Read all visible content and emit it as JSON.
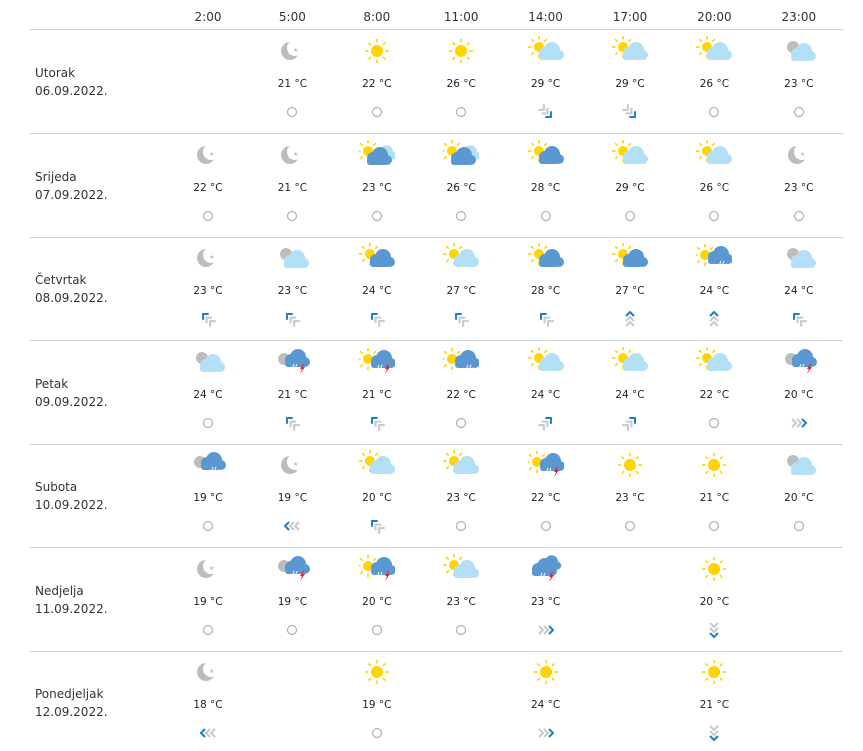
{
  "hours": [
    "2:00",
    "5:00",
    "8:00",
    "11:00",
    "14:00",
    "17:00",
    "20:00",
    "23:00"
  ],
  "colors": {
    "sun": "#ffd400",
    "cloud_light": "#b3e0f7",
    "cloud_dark": "#5b97d1",
    "moon": "#bdbdbd",
    "wind": "#1b7fc0",
    "wind_trail": "#c8c8c8",
    "bolt": "#e5262d"
  },
  "wind_legend": "calm = circle; arrows show direction (N, NE, E, SE, S, W, NW)",
  "days": [
    {
      "name": "Utorak",
      "date": "06.09.2022.",
      "cells": [
        null,
        {
          "icon": "moon",
          "temp": "21 °C",
          "wind": "calm"
        },
        {
          "icon": "sun",
          "temp": "22 °C",
          "wind": "calm"
        },
        {
          "icon": "sun",
          "temp": "26 °C",
          "wind": "calm"
        },
        {
          "icon": "sun-cloud-light",
          "temp": "29 °C",
          "wind": "SE"
        },
        {
          "icon": "sun-cloud-light",
          "temp": "29 °C",
          "wind": "SE"
        },
        {
          "icon": "sun-cloud-light",
          "temp": "26 °C",
          "wind": "calm"
        },
        {
          "icon": "moon-cloud",
          "temp": "23 °C",
          "wind": "calm"
        }
      ]
    },
    {
      "name": "Srijeda",
      "date": "07.09.2022.",
      "cells": [
        {
          "icon": "moon",
          "temp": "22 °C",
          "wind": "calm"
        },
        {
          "icon": "moon",
          "temp": "21 °C",
          "wind": "calm"
        },
        {
          "icon": "sun-clouds-mixed",
          "temp": "23 °C",
          "wind": "calm"
        },
        {
          "icon": "sun-clouds-mixed",
          "temp": "26 °C",
          "wind": "calm"
        },
        {
          "icon": "sun-cloud-dark",
          "temp": "28 °C",
          "wind": "calm"
        },
        {
          "icon": "sun-cloud-light",
          "temp": "29 °C",
          "wind": "calm"
        },
        {
          "icon": "sun-cloud-light",
          "temp": "26 °C",
          "wind": "calm"
        },
        {
          "icon": "moon",
          "temp": "23 °C",
          "wind": "calm"
        }
      ]
    },
    {
      "name": "Četvrtak",
      "date": "08.09.2022.",
      "cells": [
        {
          "icon": "moon",
          "temp": "23 °C",
          "wind": "NW"
        },
        {
          "icon": "moon-cloud",
          "temp": "23 °C",
          "wind": "NW"
        },
        {
          "icon": "sun-cloud-dark",
          "temp": "24 °C",
          "wind": "NW"
        },
        {
          "icon": "sun-cloud-light",
          "temp": "27 °C",
          "wind": "NW"
        },
        {
          "icon": "sun-cloud-dark",
          "temp": "28 °C",
          "wind": "NW"
        },
        {
          "icon": "sun-cloud-dark",
          "temp": "27 °C",
          "wind": "N"
        },
        {
          "icon": "sun-rain",
          "temp": "24 °C",
          "wind": "N"
        },
        {
          "icon": "moon-cloud",
          "temp": "24 °C",
          "wind": "NW"
        }
      ]
    },
    {
      "name": "Petak",
      "date": "09.09.2022.",
      "cells": [
        {
          "icon": "moon-cloud",
          "temp": "24 °C",
          "wind": "calm"
        },
        {
          "icon": "moon-storm",
          "temp": "21 °C",
          "wind": "NW"
        },
        {
          "icon": "sun-storm",
          "temp": "21 °C",
          "wind": "NW"
        },
        {
          "icon": "sun-rain",
          "temp": "22 °C",
          "wind": "calm"
        },
        {
          "icon": "sun-cloud-light",
          "temp": "24 °C",
          "wind": "NE"
        },
        {
          "icon": "sun-cloud-light",
          "temp": "24 °C",
          "wind": "NE"
        },
        {
          "icon": "sun-cloud-light",
          "temp": "22 °C",
          "wind": "calm"
        },
        {
          "icon": "moon-storm",
          "temp": "20 °C",
          "wind": "E"
        }
      ]
    },
    {
      "name": "Subota",
      "date": "10.09.2022.",
      "cells": [
        {
          "icon": "moon-rain",
          "temp": "19 °C",
          "wind": "calm"
        },
        {
          "icon": "moon",
          "temp": "19 °C",
          "wind": "W"
        },
        {
          "icon": "sun-cloud-light",
          "temp": "20 °C",
          "wind": "NW"
        },
        {
          "icon": "sun-cloud-light",
          "temp": "23 °C",
          "wind": "calm"
        },
        {
          "icon": "sun-storm",
          "temp": "22 °C",
          "wind": "calm"
        },
        {
          "icon": "sun",
          "temp": "23 °C",
          "wind": "calm"
        },
        {
          "icon": "sun",
          "temp": "21 °C",
          "wind": "calm"
        },
        {
          "icon": "moon-cloud",
          "temp": "20 °C",
          "wind": "calm"
        }
      ]
    },
    {
      "name": "Nedjelja",
      "date": "11.09.2022.",
      "cells": [
        {
          "icon": "moon",
          "temp": "19 °C",
          "wind": "calm"
        },
        {
          "icon": "moon-storm",
          "temp": "19 °C",
          "wind": "calm"
        },
        {
          "icon": "sun-storm",
          "temp": "20 °C",
          "wind": "calm"
        },
        {
          "icon": "sun-cloud-light",
          "temp": "23 °C",
          "wind": "calm"
        },
        {
          "icon": "cloud-storm",
          "temp": "23 °C",
          "wind": "E"
        },
        null,
        {
          "icon": "sun",
          "temp": "20 °C",
          "wind": "S"
        },
        null
      ]
    },
    {
      "name": "Ponedjeljak",
      "date": "12.09.2022.",
      "cells": [
        {
          "icon": "moon",
          "temp": "18 °C",
          "wind": "W"
        },
        null,
        {
          "icon": "sun",
          "temp": "19 °C",
          "wind": "calm"
        },
        null,
        {
          "icon": "sun",
          "temp": "24 °C",
          "wind": "E"
        },
        null,
        {
          "icon": "sun",
          "temp": "21 °C",
          "wind": "S"
        },
        null
      ]
    }
  ]
}
